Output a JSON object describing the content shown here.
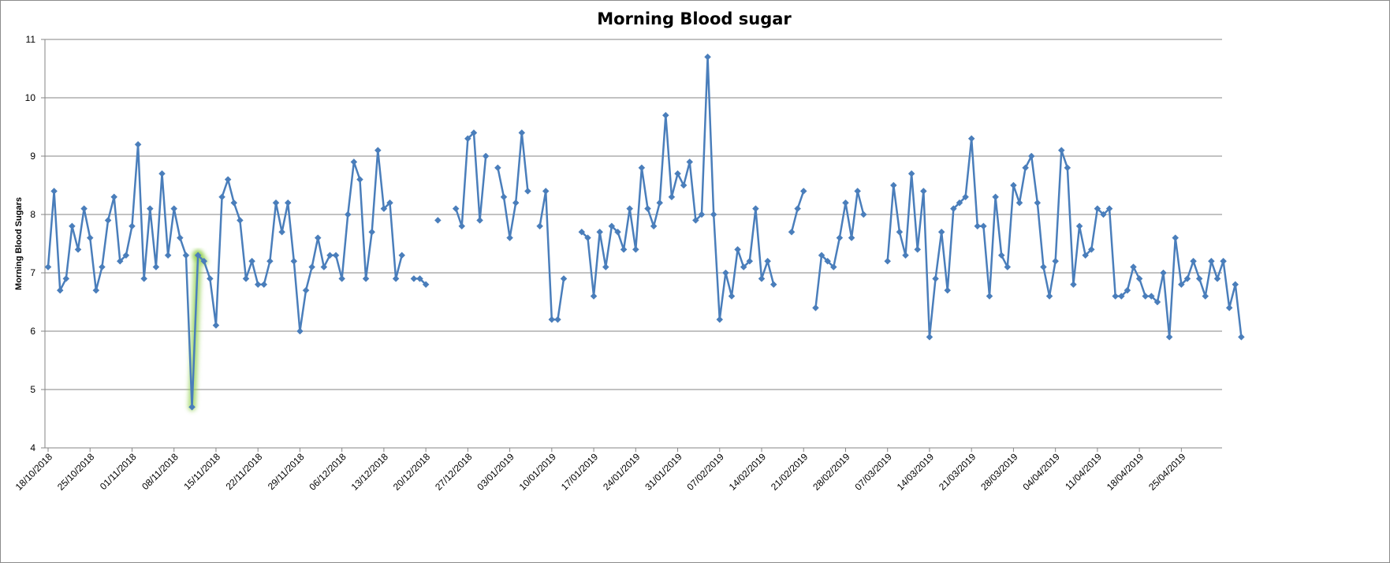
{
  "chart_data": {
    "type": "line",
    "title": "Morning Blood sugar",
    "xlabel": "",
    "ylabel": "Morning Blood Sugars",
    "ylim": [
      4,
      11
    ],
    "yticks": [
      4,
      5,
      6,
      7,
      8,
      9,
      10,
      11
    ],
    "grid": true,
    "legend": "none",
    "line_color": "#4a7ebb",
    "highlight_color": "#92d050",
    "x_start": "18/10/2018",
    "x_end": "01/05/2019",
    "x_tick_labels": [
      "18/10/2018",
      "25/10/2018",
      "01/11/2018",
      "08/11/2018",
      "15/11/2018",
      "22/11/2018",
      "29/11/2018",
      "06/12/2018",
      "13/12/2018",
      "20/12/2018",
      "27/12/2018",
      "03/01/2019",
      "10/01/2019",
      "17/01/2019",
      "24/01/2019",
      "31/01/2019",
      "07/02/2019",
      "14/02/2019",
      "21/02/2019",
      "28/02/2019",
      "07/03/2019",
      "14/03/2019",
      "21/03/2019",
      "28/03/2019",
      "04/04/2019",
      "11/04/2019",
      "18/04/2019",
      "25/04/2019"
    ],
    "highlighted_point": {
      "x": "12/11/2018",
      "y": 4.7
    },
    "series": [
      {
        "values": [
          7.1,
          8.4,
          6.7,
          6.9,
          7.8,
          7.4,
          8.1,
          7.6,
          6.7,
          7.1,
          7.9,
          8.3,
          7.2,
          7.3,
          7.8,
          9.2,
          6.9,
          8.1,
          7.1,
          8.7,
          7.3,
          8.1,
          7.6,
          7.3,
          4.7,
          7.3,
          7.2,
          6.9,
          6.1,
          8.3,
          8.6,
          8.2,
          7.9,
          6.9,
          7.2,
          6.8,
          6.8,
          7.2,
          8.2,
          7.7,
          8.2,
          7.2,
          6.0,
          6.7,
          7.1,
          7.6,
          7.1,
          7.3,
          7.3,
          6.9,
          8.0,
          8.9,
          8.6,
          6.9,
          7.7,
          9.1,
          8.1,
          8.2,
          6.9,
          7.3,
          null,
          6.9,
          6.9,
          6.8,
          null,
          7.9,
          null,
          null,
          8.1,
          7.8,
          9.3,
          9.4,
          7.9,
          9.0,
          null,
          8.8,
          8.3,
          7.6,
          8.2,
          9.4,
          8.4,
          null,
          7.8,
          8.4,
          6.2,
          6.2,
          6.9,
          null,
          null,
          7.7,
          7.6,
          6.6,
          7.7,
          7.1,
          7.8,
          7.7,
          7.4,
          8.1,
          7.4,
          8.8,
          8.1,
          7.8,
          8.2,
          9.7,
          8.3,
          8.7,
          8.5,
          8.9,
          7.9,
          8.0,
          10.7,
          8.0,
          6.2,
          7.0,
          6.6,
          7.4,
          7.1,
          7.2,
          8.1,
          6.9,
          7.2,
          6.8,
          null,
          null,
          7.7,
          8.1,
          8.4,
          null,
          6.4,
          7.3,
          7.2,
          7.1,
          7.6,
          8.2,
          7.6,
          8.4,
          8.0,
          null,
          null,
          null,
          7.2,
          8.5,
          7.7,
          7.3,
          8.7,
          7.4,
          8.4,
          5.9,
          6.9,
          7.7,
          6.7,
          8.1,
          8.2,
          8.3,
          9.3,
          7.8,
          7.8,
          6.6,
          8.3,
          7.3,
          7.1,
          8.5,
          8.2,
          8.8,
          9.0,
          8.2,
          7.1,
          6.6,
          7.2,
          9.1,
          8.8,
          6.8,
          7.8,
          7.3,
          7.4,
          8.1,
          8.0,
          8.1,
          6.6,
          6.6,
          6.7,
          7.1,
          6.9,
          6.6,
          6.6,
          6.5,
          7.0,
          5.9,
          7.6,
          6.8,
          6.9,
          7.2,
          6.9,
          6.6,
          7.2,
          6.9,
          7.2,
          6.4,
          6.8,
          5.9
        ]
      }
    ]
  }
}
